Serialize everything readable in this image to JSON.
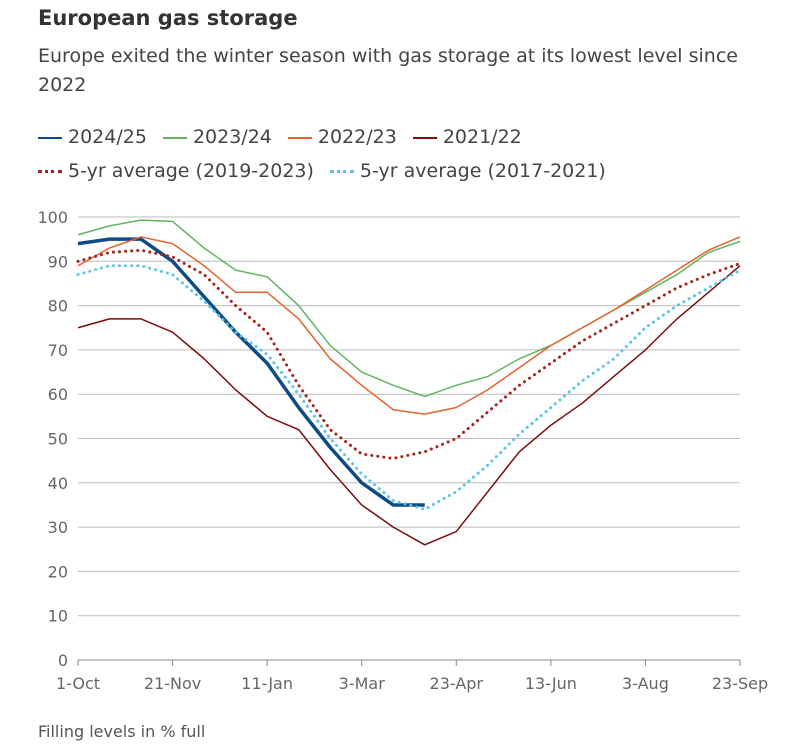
{
  "chart_data": {
    "type": "line",
    "title": "European gas storage",
    "subtitle": "Europe exited the winter season with gas storage at its lowest level since 2022",
    "note": "Filling levels in % full",
    "x": [
      0,
      17,
      34,
      51,
      68,
      85,
      102,
      119,
      136,
      153,
      170,
      187,
      204,
      221,
      238,
      255,
      272,
      289,
      306,
      323,
      340,
      357
    ],
    "xlim": [
      0,
      357
    ],
    "xticks": [
      {
        "value": 0,
        "label": "1-Oct"
      },
      {
        "value": 51,
        "label": "21-Nov"
      },
      {
        "value": 102,
        "label": "11-Jan"
      },
      {
        "value": 153,
        "label": "3-Mar"
      },
      {
        "value": 204,
        "label": "23-Apr"
      },
      {
        "value": 255,
        "label": "13-Jun"
      },
      {
        "value": 306,
        "label": "3-Aug"
      },
      {
        "value": 357,
        "label": "23-Sep"
      }
    ],
    "ylim": [
      0,
      100
    ],
    "yticks": [
      0,
      10,
      20,
      30,
      40,
      50,
      60,
      70,
      80,
      90,
      100
    ],
    "grid": true,
    "series": [
      {
        "name": "2024/25",
        "color": "#0d4b86",
        "style": "solid",
        "width": 3.5,
        "values": [
          94,
          95,
          95,
          90,
          82,
          74,
          67,
          57,
          48,
          40,
          35,
          35,
          null,
          null,
          null,
          null,
          null,
          null,
          null,
          null,
          null,
          null
        ]
      },
      {
        "name": "2023/24",
        "color": "#62b462",
        "style": "solid",
        "width": 1.5,
        "values": [
          96,
          98,
          99.3,
          99,
          93,
          88,
          86.5,
          80,
          71,
          65,
          62,
          59.5,
          62,
          64,
          68,
          71,
          75,
          79,
          83,
          87,
          92,
          94.5
        ]
      },
      {
        "name": "2022/23",
        "color": "#e4632f",
        "style": "solid",
        "width": 1.5,
        "values": [
          89,
          93,
          95.5,
          94,
          89,
          83,
          83,
          77,
          68,
          62,
          56.5,
          55.5,
          57,
          61,
          66,
          71,
          75,
          79,
          83.5,
          88,
          92.5,
          95.5
        ]
      },
      {
        "name": "2021/22",
        "color": "#7b0d0d",
        "style": "solid",
        "width": 1.5,
        "values": [
          75,
          77,
          77,
          74,
          68,
          61,
          55,
          52,
          43,
          35,
          30,
          26,
          29,
          38,
          47,
          53,
          58,
          64,
          70,
          77,
          83,
          89
        ]
      },
      {
        "name": "5-yr average (2019-2023)",
        "color": "#a3251c",
        "style": "dotted",
        "width": 3,
        "values": [
          90,
          92,
          92.5,
          91,
          87,
          80,
          74,
          62,
          52,
          46.5,
          45.5,
          47,
          50,
          56,
          62,
          67,
          72,
          76,
          80,
          84,
          87,
          89.5
        ]
      },
      {
        "name": "5-yr average (2017-2021)",
        "color": "#5cc4ea",
        "style": "dotted",
        "width": 3,
        "values": [
          87,
          89,
          89,
          87,
          81,
          74,
          69,
          60,
          50,
          42,
          36,
          34,
          38,
          44,
          51,
          57,
          63,
          68,
          75,
          80,
          84,
          88
        ]
      }
    ]
  }
}
